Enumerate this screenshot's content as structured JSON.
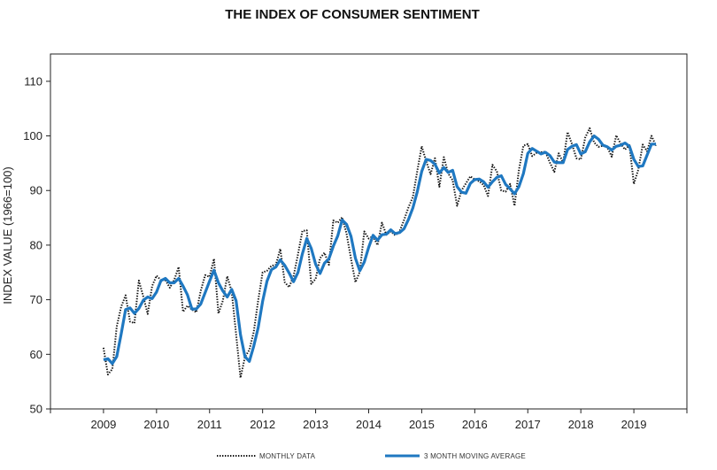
{
  "chart_data": {
    "type": "line",
    "title": "THE INDEX OF CONSUMER SENTIMENT",
    "xlabel": "",
    "ylabel": "INDEX VALUE (1966=100)",
    "ylim": [
      50,
      115
    ],
    "yticks": [
      50,
      60,
      70,
      80,
      90,
      100,
      110
    ],
    "xlim": [
      2008.0,
      2020.0
    ],
    "xticks": [
      "2009",
      "2010",
      "2011",
      "2012",
      "2013",
      "2014",
      "2015",
      "2016",
      "2017",
      "2018",
      "2019"
    ],
    "grid": false,
    "legend_position": "bottom",
    "series": [
      {
        "name": "MONTHLY DATA",
        "color": "#111111",
        "style": "dotted",
        "x": [
          2009.0,
          2009.083,
          2009.167,
          2009.25,
          2009.333,
          2009.417,
          2009.5,
          2009.583,
          2009.667,
          2009.75,
          2009.833,
          2009.917,
          2010.0,
          2010.083,
          2010.167,
          2010.25,
          2010.333,
          2010.417,
          2010.5,
          2010.583,
          2010.667,
          2010.75,
          2010.833,
          2010.917,
          2011.0,
          2011.083,
          2011.167,
          2011.25,
          2011.333,
          2011.417,
          2011.5,
          2011.583,
          2011.667,
          2011.75,
          2011.833,
          2011.917,
          2012.0,
          2012.083,
          2012.167,
          2012.25,
          2012.333,
          2012.417,
          2012.5,
          2012.583,
          2012.667,
          2012.75,
          2012.833,
          2012.917,
          2013.0,
          2013.083,
          2013.167,
          2013.25,
          2013.333,
          2013.417,
          2013.5,
          2013.583,
          2013.667,
          2013.75,
          2013.833,
          2013.917,
          2014.0,
          2014.083,
          2014.167,
          2014.25,
          2014.333,
          2014.417,
          2014.5,
          2014.583,
          2014.667,
          2014.75,
          2014.833,
          2014.917,
          2015.0,
          2015.083,
          2015.167,
          2015.25,
          2015.333,
          2015.417,
          2015.5,
          2015.583,
          2015.667,
          2015.75,
          2015.833,
          2015.917,
          2016.0,
          2016.083,
          2016.167,
          2016.25,
          2016.333,
          2016.417,
          2016.5,
          2016.583,
          2016.667,
          2016.75,
          2016.833,
          2016.917,
          2017.0,
          2017.083,
          2017.167,
          2017.25,
          2017.333,
          2017.417,
          2017.5,
          2017.583,
          2017.667,
          2017.75,
          2017.833,
          2017.917,
          2018.0,
          2018.083,
          2018.167,
          2018.25,
          2018.333,
          2018.417,
          2018.5,
          2018.583,
          2018.667,
          2018.75,
          2018.833,
          2018.917,
          2019.0,
          2019.083,
          2019.167,
          2019.25,
          2019.333,
          2019.417
        ],
        "values": [
          61.2,
          56.3,
          57.3,
          65.1,
          68.7,
          70.8,
          66.0,
          65.7,
          73.5,
          70.6,
          67.4,
          72.5,
          74.4,
          73.6,
          73.6,
          72.2,
          73.6,
          76.0,
          67.8,
          68.9,
          68.2,
          67.7,
          71.6,
          74.5,
          74.2,
          77.5,
          67.5,
          69.8,
          74.3,
          71.5,
          63.7,
          55.7,
          59.5,
          60.8,
          64.1,
          69.9,
          75.0,
          75.3,
          76.2,
          76.4,
          79.3,
          73.2,
          72.3,
          74.3,
          78.3,
          82.6,
          82.7,
          72.9,
          73.8,
          77.6,
          78.6,
          76.4,
          84.5,
          84.1,
          85.1,
          82.1,
          77.5,
          73.2,
          75.1,
          82.5,
          81.2,
          81.6,
          80.0,
          84.1,
          81.9,
          82.5,
          81.8,
          82.5,
          84.6,
          86.9,
          88.8,
          93.6,
          98.1,
          95.4,
          93.0,
          95.9,
          90.7,
          96.1,
          93.1,
          91.9,
          87.2,
          90.0,
          91.3,
          92.6,
          92.0,
          91.7,
          91.0,
          89.0,
          94.7,
          93.5,
          90.0,
          89.8,
          91.2,
          87.2,
          93.8,
          98.2,
          98.5,
          96.3,
          96.9,
          97.0,
          97.1,
          95.1,
          93.4,
          96.8,
          95.1,
          100.7,
          98.5,
          95.9,
          95.7,
          99.7,
          101.4,
          98.8,
          98.0,
          98.2,
          97.9,
          96.2,
          100.1,
          98.6,
          97.5,
          98.3,
          91.2,
          93.8,
          98.4,
          97.2,
          100.0,
          98.2
        ]
      },
      {
        "name": "3 MONTH MOVING AVERAGE",
        "color": "#1f78c1",
        "style": "solid",
        "x": [
          2009.0,
          2009.083,
          2009.167,
          2009.25,
          2009.333,
          2009.417,
          2009.5,
          2009.583,
          2009.667,
          2009.75,
          2009.833,
          2009.917,
          2010.0,
          2010.083,
          2010.167,
          2010.25,
          2010.333,
          2010.417,
          2010.5,
          2010.583,
          2010.667,
          2010.75,
          2010.833,
          2010.917,
          2011.0,
          2011.083,
          2011.167,
          2011.25,
          2011.333,
          2011.417,
          2011.5,
          2011.583,
          2011.667,
          2011.75,
          2011.833,
          2011.917,
          2012.0,
          2012.083,
          2012.167,
          2012.25,
          2012.333,
          2012.417,
          2012.5,
          2012.583,
          2012.667,
          2012.75,
          2012.833,
          2012.917,
          2013.0,
          2013.083,
          2013.167,
          2013.25,
          2013.333,
          2013.417,
          2013.5,
          2013.583,
          2013.667,
          2013.75,
          2013.833,
          2013.917,
          2014.0,
          2014.083,
          2014.167,
          2014.25,
          2014.333,
          2014.417,
          2014.5,
          2014.583,
          2014.667,
          2014.75,
          2014.833,
          2014.917,
          2015.0,
          2015.083,
          2015.167,
          2015.25,
          2015.333,
          2015.417,
          2015.5,
          2015.583,
          2015.667,
          2015.75,
          2015.833,
          2015.917,
          2016.0,
          2016.083,
          2016.167,
          2016.25,
          2016.333,
          2016.417,
          2016.5,
          2016.583,
          2016.667,
          2016.75,
          2016.833,
          2016.917,
          2017.0,
          2017.083,
          2017.167,
          2017.25,
          2017.333,
          2017.417,
          2017.5,
          2017.583,
          2017.667,
          2017.75,
          2017.833,
          2017.917,
          2018.0,
          2018.083,
          2018.167,
          2018.25,
          2018.333,
          2018.417,
          2018.5,
          2018.583,
          2018.667,
          2018.75,
          2018.833,
          2018.917,
          2019.0,
          2019.083,
          2019.167,
          2019.25,
          2019.333,
          2019.417
        ],
        "values": [
          59.0,
          59.2,
          58.3,
          59.6,
          63.7,
          68.2,
          68.5,
          67.5,
          68.4,
          69.9,
          70.5,
          70.2,
          71.4,
          73.5,
          73.9,
          73.1,
          73.1,
          73.9,
          72.5,
          70.9,
          68.3,
          68.3,
          69.2,
          71.3,
          73.4,
          75.4,
          73.1,
          71.6,
          70.5,
          71.9,
          69.8,
          63.6,
          59.6,
          58.7,
          61.5,
          64.9,
          69.7,
          73.4,
          75.5,
          76.0,
          77.3,
          76.3,
          74.9,
          73.3,
          75.0,
          78.4,
          81.2,
          79.4,
          76.5,
          74.8,
          76.7,
          77.5,
          79.8,
          81.7,
          84.6,
          83.8,
          81.6,
          77.6,
          75.3,
          76.9,
          79.6,
          81.8,
          80.9,
          81.9,
          82.0,
          82.8,
          82.1,
          82.3,
          83.0,
          84.7,
          86.8,
          89.8,
          93.5,
          95.7,
          95.5,
          94.8,
          93.2,
          94.2,
          93.3,
          93.7,
          90.7,
          89.7,
          89.5,
          91.3,
          92.0,
          92.1,
          91.6,
          90.6,
          91.6,
          92.4,
          92.7,
          91.1,
          90.3,
          89.4,
          90.7,
          93.1,
          96.8,
          97.7,
          97.2,
          96.7,
          97.0,
          96.4,
          95.2,
          95.1,
          95.1,
          97.5,
          98.1,
          98.4,
          96.7,
          97.1,
          98.9,
          100.0,
          99.4,
          98.3,
          98.0,
          97.4,
          98.1,
          98.3,
          98.7,
          98.1,
          95.7,
          94.4,
          94.5,
          96.5,
          98.5,
          98.5
        ]
      }
    ]
  }
}
